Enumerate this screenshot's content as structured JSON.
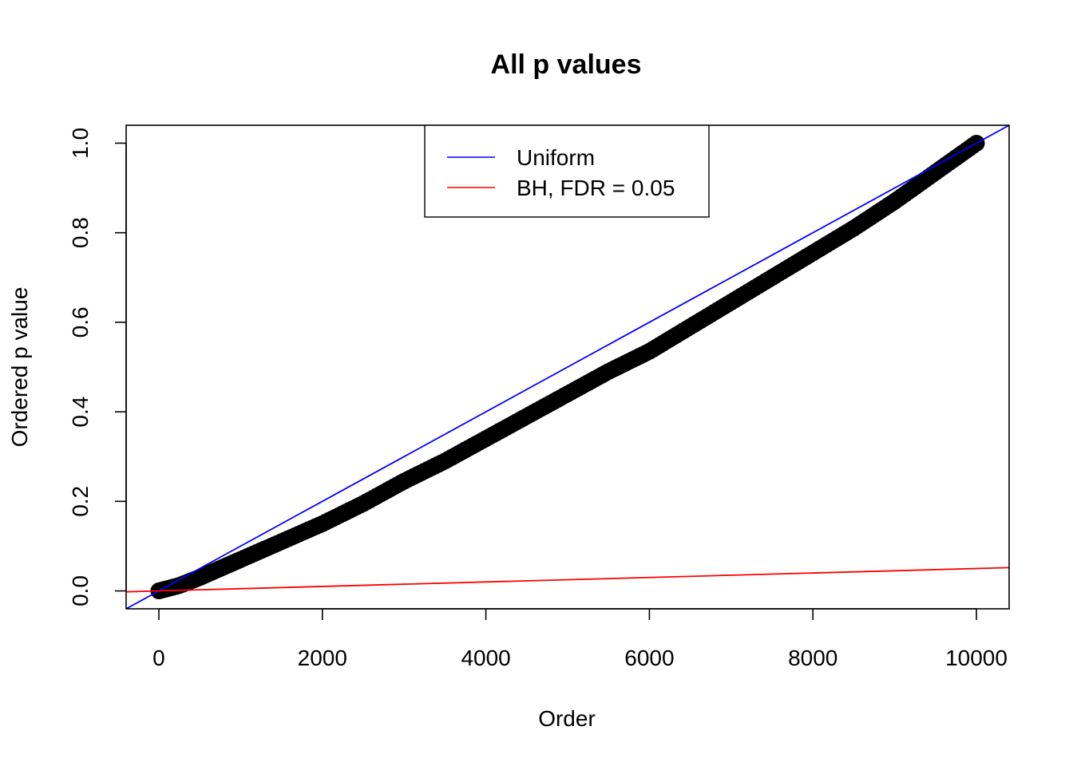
{
  "chart_data": {
    "type": "scatter",
    "title": "All p values",
    "xlabel": "Order",
    "ylabel": "Ordered p value",
    "xlim": [
      -400,
      10400
    ],
    "ylim": [
      -0.04,
      1.04
    ],
    "x_ticks": [
      0,
      2000,
      4000,
      6000,
      8000,
      10000
    ],
    "x_tick_labels": [
      "0",
      "2000",
      "4000",
      "6000",
      "8000",
      "10000"
    ],
    "y_ticks": [
      0.0,
      0.2,
      0.4,
      0.6,
      0.8,
      1.0
    ],
    "y_tick_labels": [
      "0.0",
      "0.2",
      "0.4",
      "0.6",
      "0.8",
      "1.0"
    ],
    "grid": false,
    "legend_position": "top",
    "series": [
      {
        "type": "points",
        "color": "#000000",
        "x": [
          0,
          250,
          500,
          750,
          1000,
          1500,
          2000,
          2500,
          3000,
          3500,
          4000,
          4500,
          5000,
          5500,
          6000,
          6500,
          7000,
          7500,
          8000,
          8500,
          9000,
          9500,
          10000
        ],
        "y": [
          0.0,
          0.012,
          0.03,
          0.05,
          0.07,
          0.11,
          0.15,
          0.195,
          0.245,
          0.29,
          0.34,
          0.39,
          0.44,
          0.49,
          0.535,
          0.59,
          0.645,
          0.7,
          0.755,
          0.81,
          0.87,
          0.935,
          1.0
        ]
      },
      {
        "name": "Uniform",
        "type": "abline",
        "color": "#0000ff",
        "intercept": 0,
        "slope": 0.0001
      },
      {
        "name": "BH, FDR = 0.05",
        "type": "abline",
        "color": "#ff0000",
        "intercept": 0,
        "slope": 5e-06
      }
    ]
  }
}
